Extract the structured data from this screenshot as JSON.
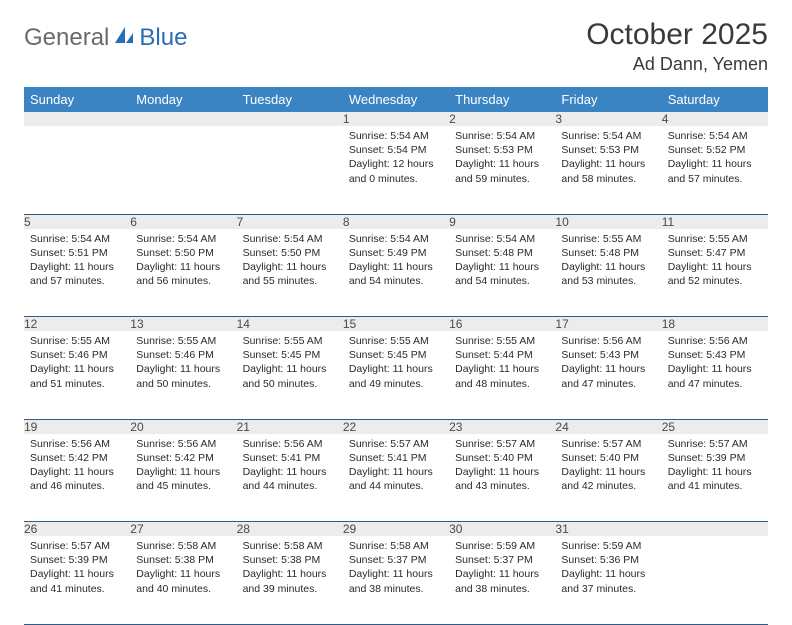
{
  "logo": {
    "part1": "General",
    "part2": "Blue"
  },
  "title": "October 2025",
  "location": "Ad Dann, Yemen",
  "colors": {
    "header_bg": "#3b84c4",
    "header_fg": "#ffffff",
    "daynum_bg": "#ececec",
    "rule": "#2e5c8a",
    "logo_gray": "#6a6a6a",
    "logo_blue": "#2a6db8"
  },
  "weekdays": [
    "Sunday",
    "Monday",
    "Tuesday",
    "Wednesday",
    "Thursday",
    "Friday",
    "Saturday"
  ],
  "weeks": [
    [
      null,
      null,
      null,
      {
        "n": "1",
        "sr": "5:54 AM",
        "ss": "5:54 PM",
        "dl": "12 hours and 0 minutes."
      },
      {
        "n": "2",
        "sr": "5:54 AM",
        "ss": "5:53 PM",
        "dl": "11 hours and 59 minutes."
      },
      {
        "n": "3",
        "sr": "5:54 AM",
        "ss": "5:53 PM",
        "dl": "11 hours and 58 minutes."
      },
      {
        "n": "4",
        "sr": "5:54 AM",
        "ss": "5:52 PM",
        "dl": "11 hours and 57 minutes."
      }
    ],
    [
      {
        "n": "5",
        "sr": "5:54 AM",
        "ss": "5:51 PM",
        "dl": "11 hours and 57 minutes."
      },
      {
        "n": "6",
        "sr": "5:54 AM",
        "ss": "5:50 PM",
        "dl": "11 hours and 56 minutes."
      },
      {
        "n": "7",
        "sr": "5:54 AM",
        "ss": "5:50 PM",
        "dl": "11 hours and 55 minutes."
      },
      {
        "n": "8",
        "sr": "5:54 AM",
        "ss": "5:49 PM",
        "dl": "11 hours and 54 minutes."
      },
      {
        "n": "9",
        "sr": "5:54 AM",
        "ss": "5:48 PM",
        "dl": "11 hours and 54 minutes."
      },
      {
        "n": "10",
        "sr": "5:55 AM",
        "ss": "5:48 PM",
        "dl": "11 hours and 53 minutes."
      },
      {
        "n": "11",
        "sr": "5:55 AM",
        "ss": "5:47 PM",
        "dl": "11 hours and 52 minutes."
      }
    ],
    [
      {
        "n": "12",
        "sr": "5:55 AM",
        "ss": "5:46 PM",
        "dl": "11 hours and 51 minutes."
      },
      {
        "n": "13",
        "sr": "5:55 AM",
        "ss": "5:46 PM",
        "dl": "11 hours and 50 minutes."
      },
      {
        "n": "14",
        "sr": "5:55 AM",
        "ss": "5:45 PM",
        "dl": "11 hours and 50 minutes."
      },
      {
        "n": "15",
        "sr": "5:55 AM",
        "ss": "5:45 PM",
        "dl": "11 hours and 49 minutes."
      },
      {
        "n": "16",
        "sr": "5:55 AM",
        "ss": "5:44 PM",
        "dl": "11 hours and 48 minutes."
      },
      {
        "n": "17",
        "sr": "5:56 AM",
        "ss": "5:43 PM",
        "dl": "11 hours and 47 minutes."
      },
      {
        "n": "18",
        "sr": "5:56 AM",
        "ss": "5:43 PM",
        "dl": "11 hours and 47 minutes."
      }
    ],
    [
      {
        "n": "19",
        "sr": "5:56 AM",
        "ss": "5:42 PM",
        "dl": "11 hours and 46 minutes."
      },
      {
        "n": "20",
        "sr": "5:56 AM",
        "ss": "5:42 PM",
        "dl": "11 hours and 45 minutes."
      },
      {
        "n": "21",
        "sr": "5:56 AM",
        "ss": "5:41 PM",
        "dl": "11 hours and 44 minutes."
      },
      {
        "n": "22",
        "sr": "5:57 AM",
        "ss": "5:41 PM",
        "dl": "11 hours and 44 minutes."
      },
      {
        "n": "23",
        "sr": "5:57 AM",
        "ss": "5:40 PM",
        "dl": "11 hours and 43 minutes."
      },
      {
        "n": "24",
        "sr": "5:57 AM",
        "ss": "5:40 PM",
        "dl": "11 hours and 42 minutes."
      },
      {
        "n": "25",
        "sr": "5:57 AM",
        "ss": "5:39 PM",
        "dl": "11 hours and 41 minutes."
      }
    ],
    [
      {
        "n": "26",
        "sr": "5:57 AM",
        "ss": "5:39 PM",
        "dl": "11 hours and 41 minutes."
      },
      {
        "n": "27",
        "sr": "5:58 AM",
        "ss": "5:38 PM",
        "dl": "11 hours and 40 minutes."
      },
      {
        "n": "28",
        "sr": "5:58 AM",
        "ss": "5:38 PM",
        "dl": "11 hours and 39 minutes."
      },
      {
        "n": "29",
        "sr": "5:58 AM",
        "ss": "5:37 PM",
        "dl": "11 hours and 38 minutes."
      },
      {
        "n": "30",
        "sr": "5:59 AM",
        "ss": "5:37 PM",
        "dl": "11 hours and 38 minutes."
      },
      {
        "n": "31",
        "sr": "5:59 AM",
        "ss": "5:36 PM",
        "dl": "11 hours and 37 minutes."
      },
      null
    ]
  ],
  "labels": {
    "sunrise": "Sunrise:",
    "sunset": "Sunset:",
    "daylight": "Daylight:"
  }
}
